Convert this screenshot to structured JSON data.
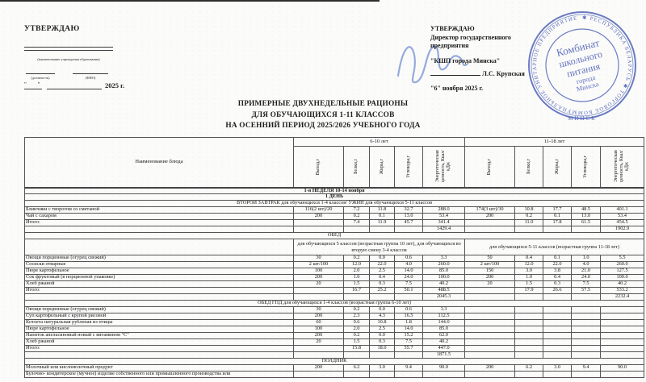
{
  "approval_left": {
    "title": "УТВЕРЖДАЮ",
    "caption_institution": "(наименование учреждения образования)",
    "caption_position": "(должность)",
    "caption_name": "(ФИО)",
    "quotes": "\"  \"",
    "year_label": "2025 г."
  },
  "approval_right": {
    "title": "УТВЕРЖДАЮ",
    "line1": "Директор государственного",
    "line2": "предприятия",
    "line3": "\"КШП города Минска\"",
    "signer_name": "Л.С. Крупская",
    "date_line": "\"6\" ноября 2025 г."
  },
  "stamp": {
    "ring_text": "✱ РЕСПУБЛИКА БЕЛАРУСЬ ✱ ТОРГОВОЕ КОММУНАЛЬНОЕ УНИТАРНОЕ ПРЕДПРИЯТИЕ ✱ г. МИНСК",
    "center_line1": "Комбинат",
    "center_line2": "школьного",
    "center_line3": "питания",
    "center_line4": "города",
    "center_line5": "Минска",
    "bottom_text": "МИНСК",
    "ink_color": "#3f55b5"
  },
  "doc_title": {
    "line1": "ПРИМЕРНЫЕ ДВУХНЕДЕЛЬНЫЕ РАЦИОНЫ",
    "line2": "ДЛЯ ОБУЧАЮЩИХСЯ 1-11 КЛАССОВ",
    "line3": "НА ОСЕННИЙ ПЕРИОД 2025/2026 УЧЕБНОГО ГОДА"
  },
  "table": {
    "name_header": "Наименование блюда",
    "group_headers": [
      "6-10 лет",
      "11-18 лет"
    ],
    "metric_headers": [
      "Выход,г",
      "Белки,г",
      "Жиры,г",
      "Углеводы,г",
      "Энергетическая ценность, Ккал/кДж"
    ],
    "rows": [
      {
        "t": "band",
        "b": true,
        "week": true,
        "text": "1-я НЕДЕЛЯ 10-14 ноября"
      },
      {
        "t": "band",
        "b": true,
        "text": "1 ДЕНЬ"
      },
      {
        "t": "band",
        "text": "ВТОРОЙ ЗАВТРАК для обучающихся 1-4 классов/ УЖИН для обучающихся 5-11 классов"
      },
      {
        "t": "dish",
        "name": "Блинчики с творогом со сметаной",
        "v": [
          "116(2 шт)/20",
          "7.2",
          "11.8",
          "32.7",
          "288.0",
          "174(3 шт)/30",
          "10.8",
          "17.7",
          "48.5",
          "401.1"
        ]
      },
      {
        "t": "dish",
        "name": "Чай с сахаром",
        "v": [
          "200",
          "0.2",
          "0.1",
          "13.0",
          "53.4",
          "200",
          "0.2",
          "0.1",
          "13.0",
          "53.4"
        ]
      },
      {
        "t": "dish",
        "name": "Итого:",
        "v": [
          "",
          "7.4",
          "11.9",
          "45.7",
          "341.4",
          "",
          "11.0",
          "17.8",
          "61.5",
          "454.5"
        ]
      },
      {
        "t": "dish",
        "name": "",
        "v": [
          "",
          "",
          "",
          "",
          "1429.4",
          "",
          "",
          "",
          "",
          "1902.9"
        ]
      },
      {
        "t": "band",
        "text": "ОБЕД"
      },
      {
        "t": "sub",
        "left": "для обучающихся 5 классов (возрастная группа 10 лет), для обучающихся во вторую смену 3-4 классов",
        "right": "для обучающихся 5-11 классов (возрастная группа 11-18 лет)"
      },
      {
        "t": "dish",
        "name": "Овощи порционные (огурец свежий)",
        "v": [
          "30",
          "0.2",
          "0.0",
          "0.6",
          "3.3",
          "50",
          "0.4",
          "0.1",
          "1.0",
          "5.5"
        ]
      },
      {
        "t": "dish",
        "name": "Сосиски отварные",
        "v": [
          "2 шт/100",
          "12.0",
          "22.0",
          "4.0",
          "260.0",
          "2 шт/100",
          "12.0",
          "22.0",
          "4.0",
          "260.0"
        ]
      },
      {
        "t": "dish",
        "name": "Пюре картофельное",
        "v": [
          "100",
          "2.0",
          "2.5",
          "14.0",
          "85.0",
          "150",
          "3.0",
          "3.8",
          "21.0",
          "127.5"
        ]
      },
      {
        "t": "dish",
        "name": "Сок фруктовый (в порционной упаковке)",
        "v": [
          "200",
          "1.0",
          "0.4",
          "24.0",
          "100.0",
          "200",
          "1.0",
          "0.4",
          "24.0",
          "100.0"
        ]
      },
      {
        "t": "dish",
        "name": "Хлеб ржаной",
        "v": [
          "20",
          "1.5",
          "0.3",
          "7.5",
          "40.2",
          "20",
          "1.5",
          "0.3",
          "7.5",
          "40.2"
        ]
      },
      {
        "t": "dish",
        "name": "Итого:",
        "v": [
          "",
          "16.7",
          "25.2",
          "50.1",
          "488.5",
          "",
          "17.9",
          "26.6",
          "57.5",
          "533.2"
        ]
      },
      {
        "t": "dish",
        "name": "",
        "v": [
          "",
          "",
          "",
          "",
          "2045.3",
          "",
          "",
          "",
          "",
          "2232.4"
        ]
      },
      {
        "t": "band",
        "text": "ОБЕД ГПД для обучающихся 1-4 классов (возрастная группа 6-10 лет)"
      },
      {
        "t": "dish",
        "name": "Овощи порционные (огурец свежий)",
        "v": [
          "30",
          "0.2",
          "0.0",
          "0.6",
          "3.3",
          "",
          "",
          "",
          "",
          ""
        ]
      },
      {
        "t": "dish",
        "name": "Суп картофельный с крупой рисовой",
        "v": [
          "200",
          "2.3",
          "4.3",
          "16.5",
          "112.5",
          "",
          "",
          "",
          "",
          ""
        ]
      },
      {
        "t": "dish",
        "name": "Котлета натуральная рубленая из птицы",
        "v": [
          "60",
          "9.6",
          "10.8",
          "1.8",
          "144.0",
          "",
          "",
          "",
          "",
          ""
        ]
      },
      {
        "t": "dish",
        "name": "Пюре картофельное",
        "v": [
          "100",
          "2.0",
          "2.5",
          "14.0",
          "85.0",
          "",
          "",
          "",
          "",
          ""
        ]
      },
      {
        "t": "dish",
        "name": "Напиток апельсиновый новый с витамином \"С\"",
        "v": [
          "200",
          "0.2",
          "0.0",
          "15.2",
          "62.0",
          "",
          "",
          "",
          "",
          ""
        ]
      },
      {
        "t": "dish",
        "name": "Хлеб ржаной",
        "v": [
          "20",
          "1.5",
          "0.3",
          "7.5",
          "40.2",
          "",
          "",
          "",
          "",
          ""
        ]
      },
      {
        "t": "dish",
        "name": "Итого:",
        "v": [
          "",
          "15.8",
          "18.0",
          "55.7",
          "447.0",
          "",
          "",
          "",
          "",
          ""
        ]
      },
      {
        "t": "dish",
        "name": "",
        "v": [
          "",
          "",
          "",
          "",
          "1871.5",
          "",
          "",
          "",
          "",
          ""
        ]
      },
      {
        "t": "band",
        "text": "ПОЛДНИК"
      },
      {
        "t": "dish",
        "name": "Молочный или кисломолочный продукт",
        "v": [
          "200",
          "6.2",
          "3.0",
          "9.4",
          "90.0",
          "200",
          "6.2",
          "3.0",
          "9.4",
          "90.0"
        ]
      },
      {
        "t": "dish",
        "name": "Булочно- кондитерское (мучное) изделие собственного или промышленного производства или",
        "v": [
          "",
          "",
          "",
          "",
          "",
          "",
          "",
          "",
          "",
          ""
        ]
      }
    ]
  }
}
